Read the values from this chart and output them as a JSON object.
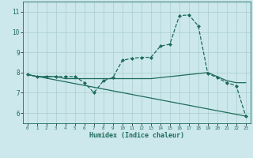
{
  "title": "",
  "xlabel": "Humidex (Indice chaleur)",
  "bg_color": "#cce8ec",
  "grid_color": "#aacccc",
  "line_color": "#1e6b5a",
  "xlim": [
    -0.5,
    23.5
  ],
  "ylim": [
    5.5,
    11.5
  ],
  "xticks": [
    0,
    1,
    2,
    3,
    4,
    5,
    6,
    7,
    8,
    9,
    10,
    11,
    12,
    13,
    14,
    15,
    16,
    17,
    18,
    19,
    20,
    21,
    22,
    23
  ],
  "yticks": [
    6,
    7,
    8,
    9,
    10,
    11
  ],
  "series": [
    {
      "x": [
        0,
        1,
        2,
        3,
        4,
        5,
        6,
        7,
        8,
        9,
        10,
        11,
        12,
        13,
        14,
        15,
        16,
        17,
        18,
        19,
        20,
        21,
        22,
        23
      ],
      "y": [
        7.9,
        7.8,
        7.8,
        7.8,
        7.8,
        7.8,
        7.5,
        7.0,
        7.6,
        7.75,
        8.6,
        8.7,
        8.75,
        8.75,
        9.3,
        9.4,
        10.8,
        10.85,
        10.3,
        7.95,
        7.75,
        7.5,
        7.35,
        5.85
      ],
      "marker": "D",
      "markersize": 2.0,
      "linewidth": 0.9,
      "linestyle": "--"
    },
    {
      "x": [
        0,
        1,
        2,
        3,
        4,
        5,
        6,
        7,
        8,
        9,
        10,
        11,
        12,
        13,
        14,
        15,
        16,
        17,
        18,
        19,
        20,
        21,
        22,
        23
      ],
      "y": [
        7.9,
        7.8,
        7.8,
        7.8,
        7.7,
        7.7,
        7.7,
        7.7,
        7.7,
        7.7,
        7.7,
        7.7,
        7.7,
        7.7,
        7.75,
        7.8,
        7.85,
        7.9,
        7.95,
        8.0,
        7.8,
        7.6,
        7.5,
        7.5
      ],
      "marker": null,
      "markersize": 0,
      "linewidth": 0.9,
      "linestyle": "-"
    },
    {
      "x": [
        0,
        23
      ],
      "y": [
        7.9,
        5.85
      ],
      "marker": null,
      "markersize": 0,
      "linewidth": 0.9,
      "linestyle": "-"
    }
  ]
}
